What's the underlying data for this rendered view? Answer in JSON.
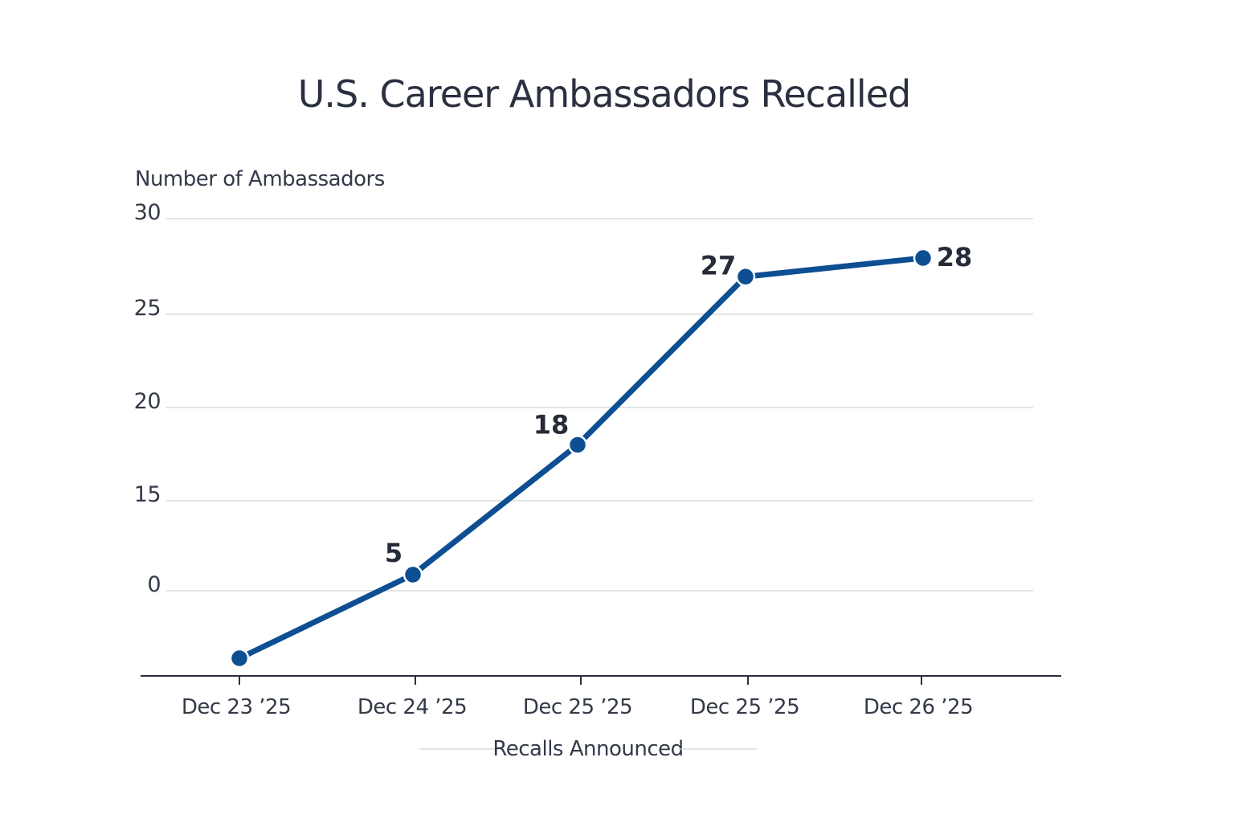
{
  "chart_data": {
    "type": "line",
    "title": "U.S. Career Ambassadors Recalled",
    "ylabel": "Number of Ambassadors",
    "xlabel": "",
    "legend": "Recalls Announced",
    "legend_position": "bottom-center",
    "categories": [
      "Dec 23 ’25",
      "Dec 24 ’25",
      "Dec 25 ’25",
      "Dec 25 ’25",
      "Dec 26 ’25"
    ],
    "y_tick_labels": [
      "0",
      "15",
      "20",
      "25",
      "30"
    ],
    "series": [
      {
        "name": "Recalls Announced",
        "values": [
          null,
          5,
          18,
          27,
          28
        ],
        "data_labels": [
          "",
          "5",
          "18",
          "27",
          "28"
        ]
      }
    ],
    "grid": true,
    "colors": {
      "line": "#0d4f92",
      "text": "#2b3040",
      "grid": "#cfd3d8"
    }
  }
}
